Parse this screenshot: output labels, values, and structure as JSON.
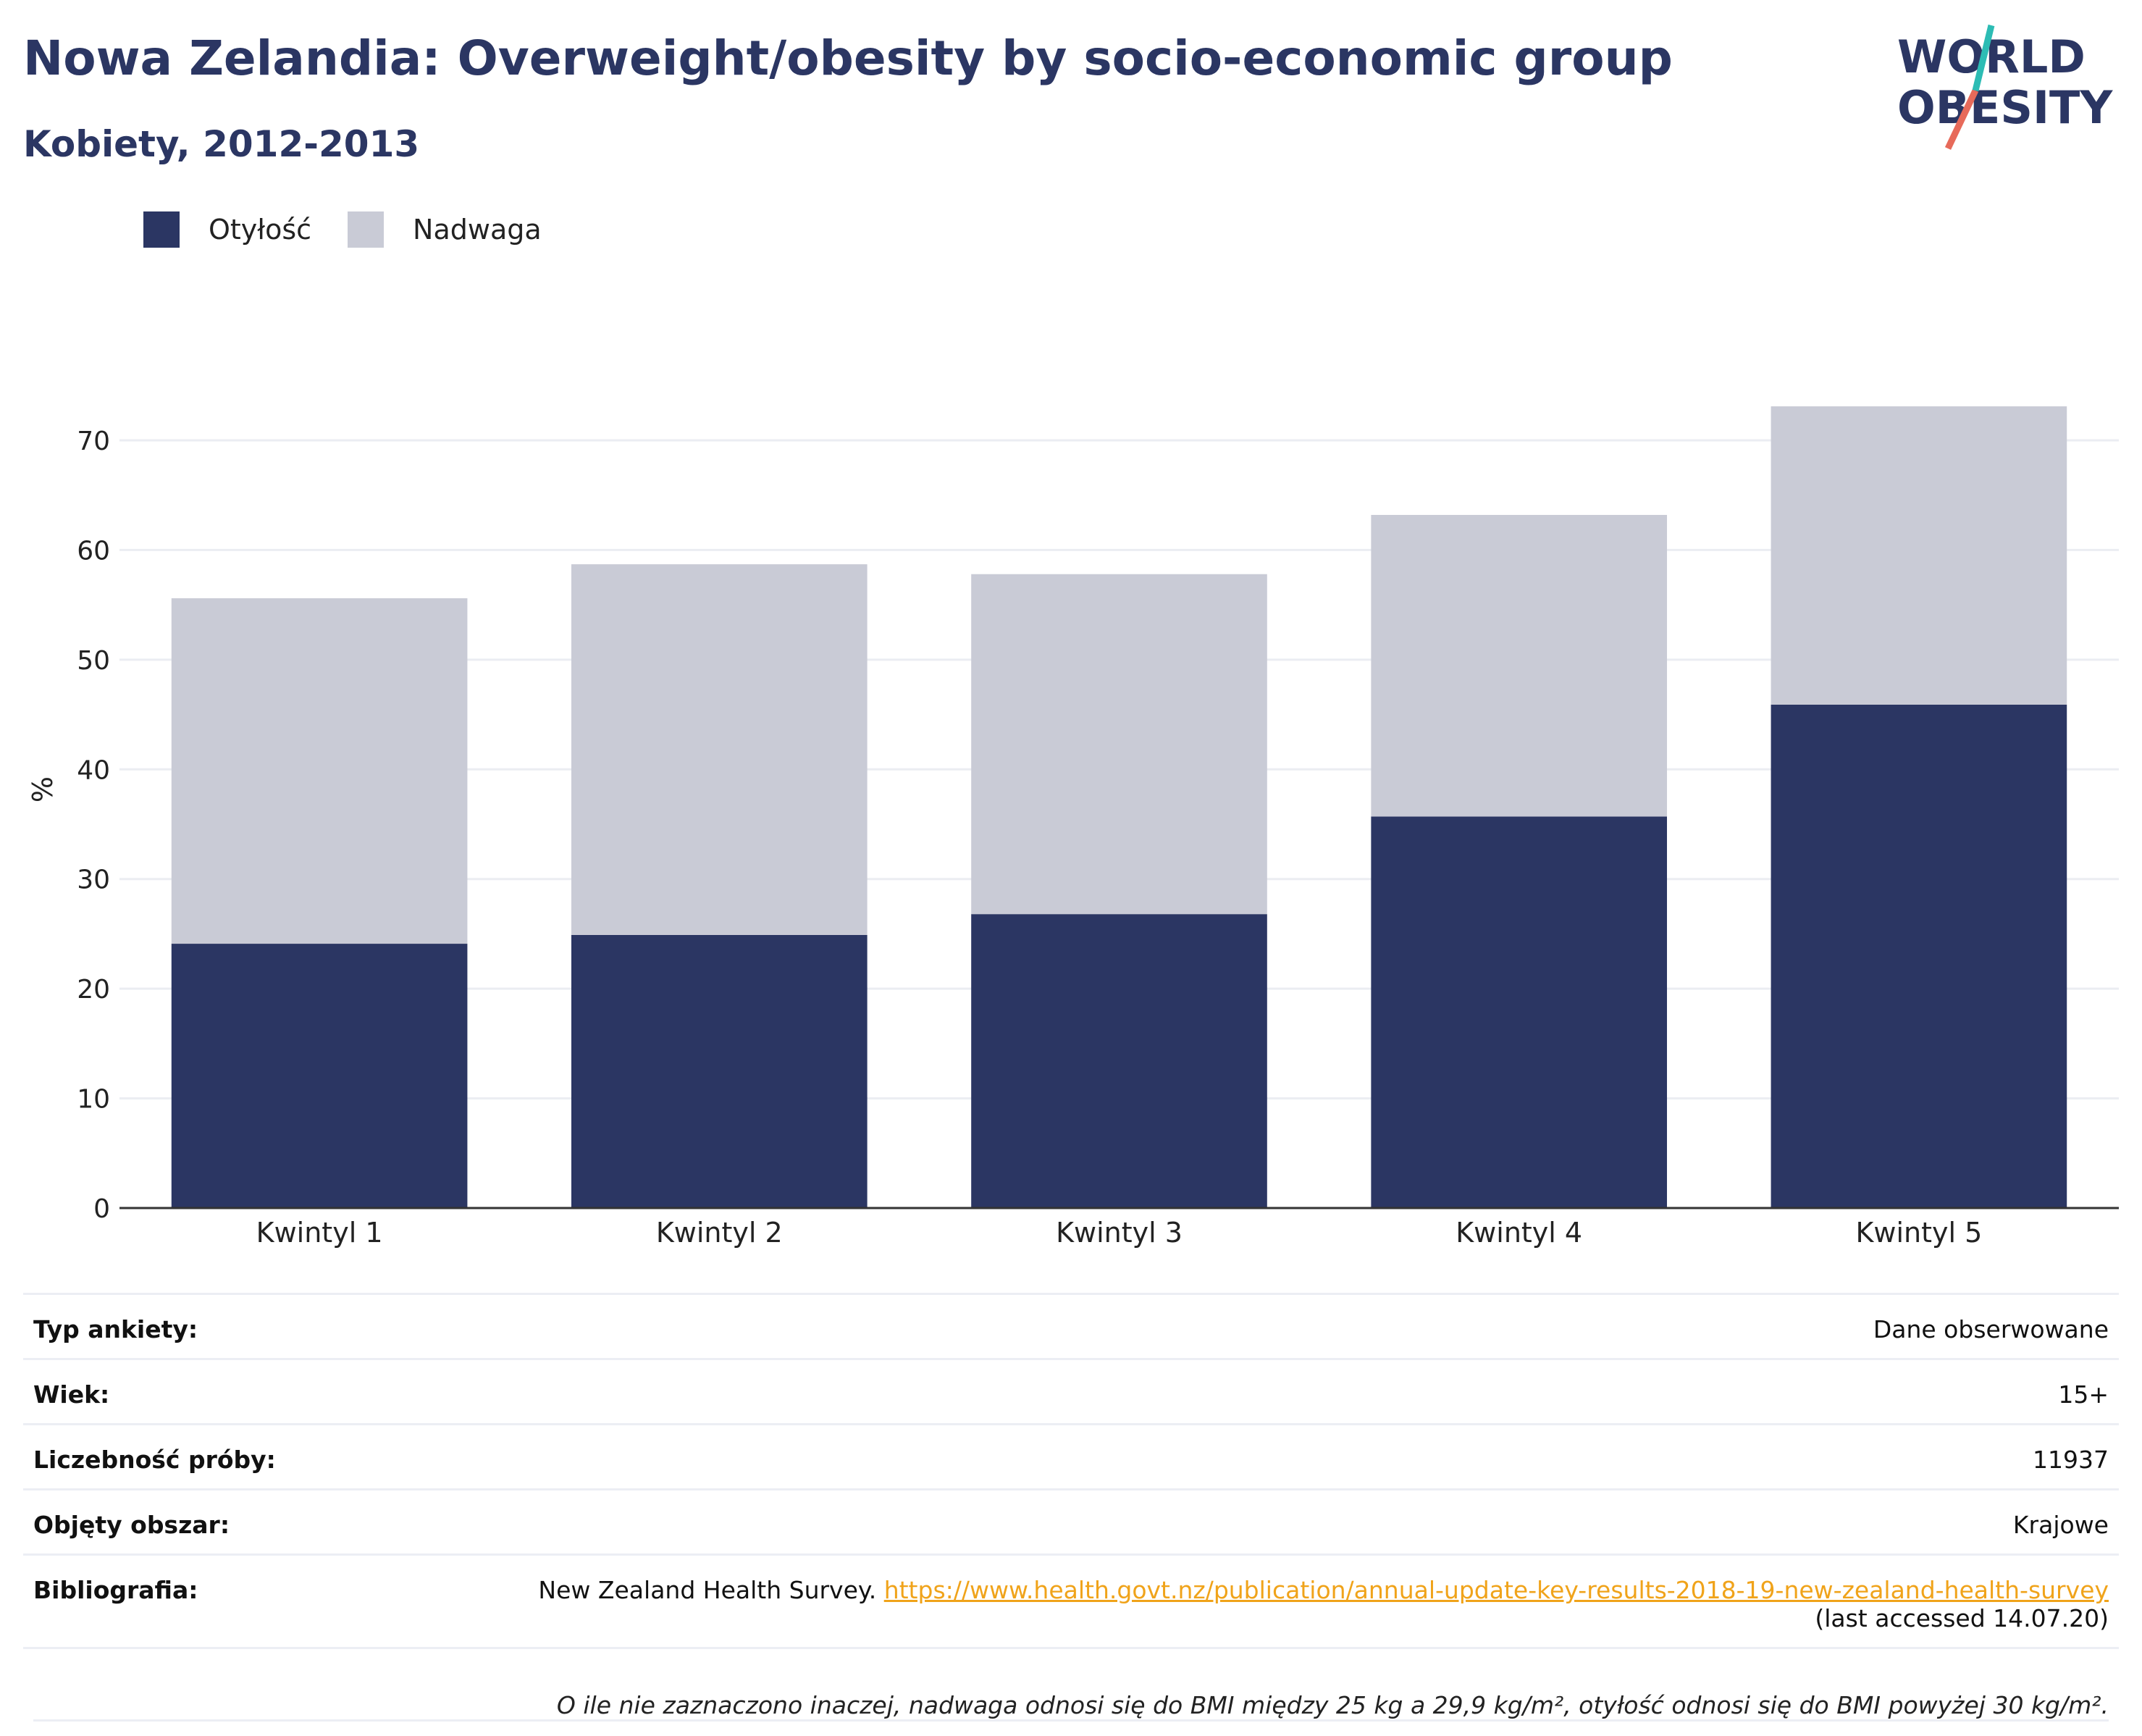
{
  "header": {
    "title": "Nowa Zelandia: Overweight/obesity by socio-economic group",
    "subtitle": "Kobiety, 2012-2013",
    "logo_line1": "WORLD",
    "logo_line2": "OBESITY"
  },
  "colors": {
    "obesity": "#2b3663",
    "overweight": "#c9cbd6",
    "title": "#2b3663",
    "link": "#f0a31a",
    "logo_teal": "#2cbcb4",
    "logo_coral": "#e76a5a"
  },
  "legend": {
    "obesity_label": "Otyłość",
    "overweight_label": "Nadwaga"
  },
  "chart_data": {
    "type": "bar",
    "stacked": true,
    "categories": [
      "Kwintyl 1",
      "Kwintyl 2",
      "Kwintyl 3",
      "Kwintyl 4",
      "Kwintyl 5"
    ],
    "series": [
      {
        "name": "Otyłość",
        "values": [
          24.1,
          24.9,
          26.8,
          35.7,
          45.9
        ]
      },
      {
        "name": "Nadwaga",
        "values": [
          31.5,
          33.8,
          31.0,
          27.5,
          27.2
        ]
      }
    ],
    "ylabel": "%",
    "ylim": [
      0,
      75
    ],
    "yticks": [
      0,
      10,
      20,
      30,
      40,
      50,
      60,
      70
    ],
    "grid": true,
    "legend_position": "top-left"
  },
  "info": {
    "survey_type_label": "Typ ankiety:",
    "survey_type_value": "Dane obserwowane",
    "age_label": "Wiek:",
    "age_value": "15+",
    "sample_label": "Liczebność próby:",
    "sample_value": "11937",
    "area_label": "Objęty obszar:",
    "area_value": "Krajowe",
    "biblio_label": "Bibliografia:",
    "biblio_text": "New Zealand Health Survey.",
    "biblio_link": "https://www.health.govt.nz/publication/annual-update-key-results-2018-19-new-zealand-health-survey",
    "biblio_accessed": "(last accessed 14.07.20)",
    "note": "O ile nie zaznaczono inaczej, nadwaga odnosi się do BMI między 25 kg a 29,9 kg/m², otyłość odnosi się do BMI powyżej 30 kg/m²."
  }
}
